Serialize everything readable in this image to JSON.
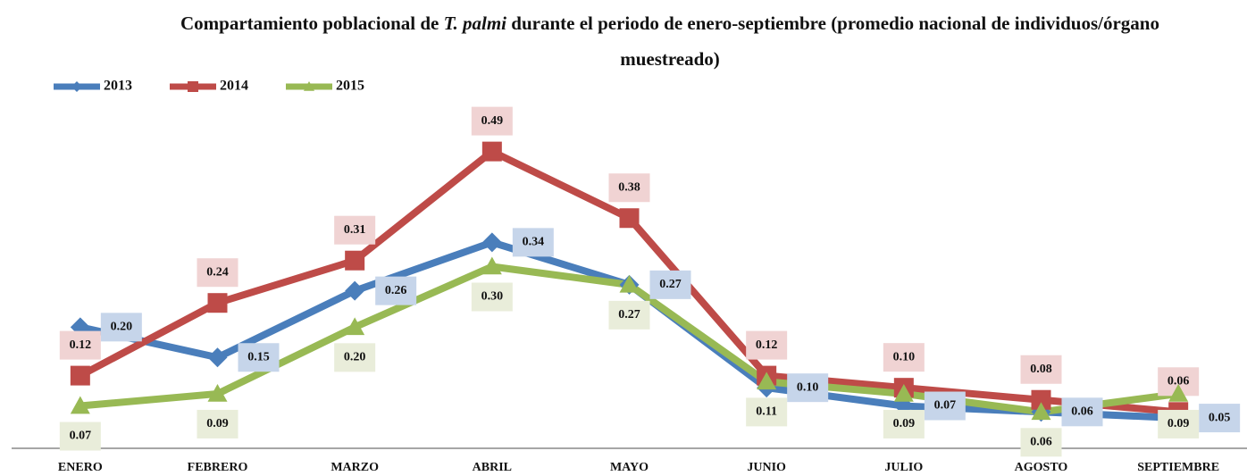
{
  "chart_data": {
    "type": "line",
    "title": [
      "Compartamiento poblacional de ",
      "T. palmi",
      " durante el periodo de enero-septiembre (promedio nacional de individuos/órgano muestreado)"
    ],
    "categories": [
      "ENERO",
      "FEBRERO",
      "MARZO",
      "ABRIL",
      "MAYO",
      "JUNIO",
      "JULIO",
      "AGOSTO",
      "SEPTIEMBRE"
    ],
    "series": [
      {
        "name": "2013",
        "color": "#4a7ebb",
        "marker": "diamond",
        "values": [
          0.2,
          0.15,
          0.26,
          0.34,
          0.27,
          0.1,
          0.07,
          0.06,
          0.05
        ],
        "value_labels": [
          "0.20",
          "0.15",
          "0.26",
          "0.34",
          "0.27",
          "0.10",
          "0.07",
          "0.06",
          "0.05"
        ]
      },
      {
        "name": "2014",
        "color": "#be4b48",
        "marker": "square",
        "values": [
          0.12,
          0.24,
          0.31,
          0.49,
          0.38,
          0.12,
          0.1,
          0.08,
          0.06
        ],
        "value_labels": [
          "0.12",
          "0.24",
          "0.31",
          "0.49",
          "0.38",
          "0.12",
          "0.10",
          "0.08",
          "0.06"
        ]
      },
      {
        "name": "2015",
        "color": "#98b954",
        "marker": "triangle",
        "values": [
          0.07,
          0.09,
          0.2,
          0.3,
          0.27,
          0.11,
          0.09,
          0.06,
          0.09
        ],
        "value_labels": [
          "0.07",
          "0.09",
          "0.20",
          "0.30",
          "0.27",
          "0.11",
          "0.09",
          "0.06",
          "0.09"
        ]
      }
    ],
    "ylim": [
      0,
      0.6
    ],
    "legend": "top-left"
  }
}
